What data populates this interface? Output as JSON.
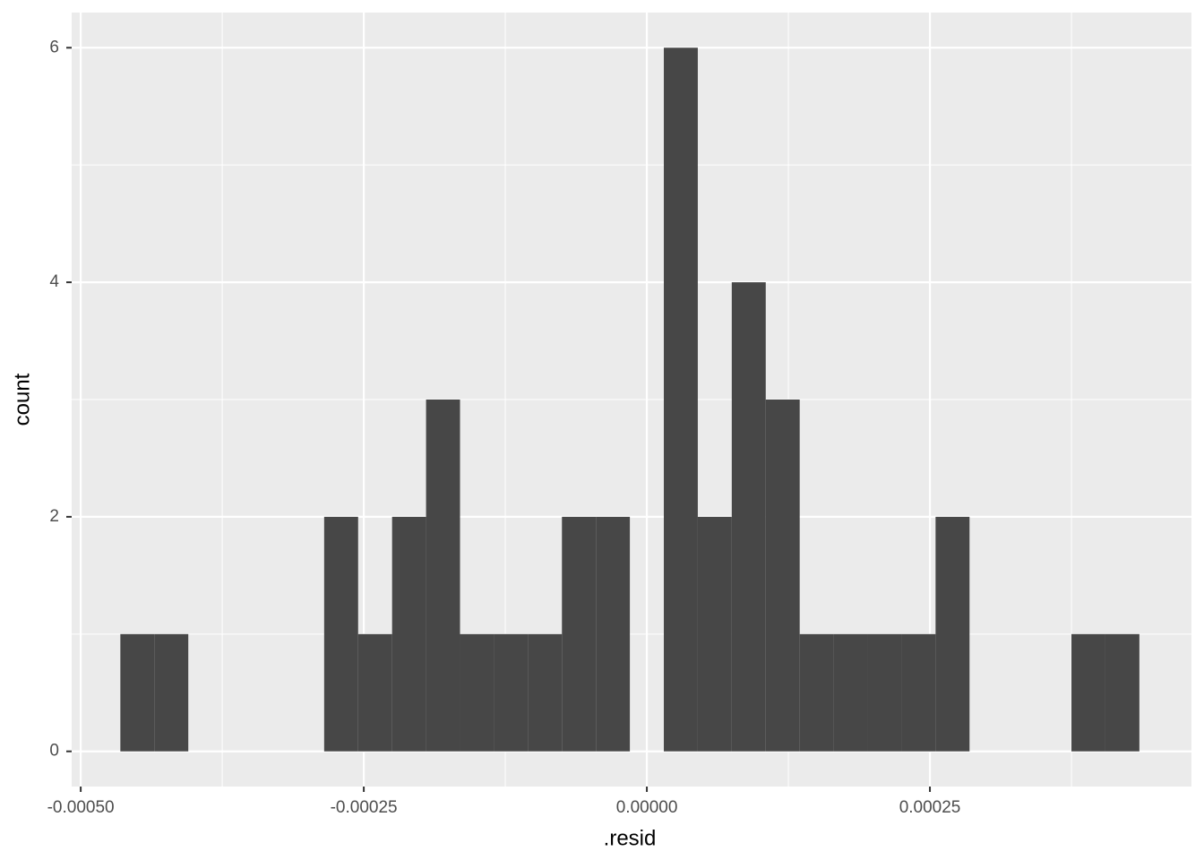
{
  "chart_data": {
    "type": "histogram",
    "x_label": ".resid",
    "y_label": "count",
    "bins": [
      -0.000465,
      -0.000435,
      -0.000405,
      -0.000375,
      -0.000345,
      -0.000315,
      -0.000285,
      -0.000255,
      -0.000225,
      -0.000195,
      -0.000165,
      -0.000135,
      -0.000105,
      -7.5e-05,
      -4.5e-05,
      -1.5e-05,
      1.5e-05,
      4.5e-05,
      7.5e-05,
      0.000105,
      0.000135,
      0.000165,
      0.000195,
      0.000225,
      0.000255,
      0.000285,
      0.000315,
      0.000345,
      0.000375,
      0.000405,
      0.000435
    ],
    "counts": [
      1,
      1,
      0,
      0,
      0,
      0,
      2,
      1,
      2,
      3,
      1,
      1,
      1,
      2,
      2,
      0,
      6,
      2,
      4,
      3,
      1,
      1,
      1,
      1,
      2,
      0,
      0,
      0,
      1,
      1
    ],
    "color": "#474747",
    "xlim": [
      -0.000508,
      0.000481
    ],
    "ylim": [
      -0.3,
      6.3
    ],
    "xticks": [
      {
        "value": -0.0005,
        "label": "-0.00050"
      },
      {
        "value": -0.00025,
        "label": "-0.00025"
      },
      {
        "value": 0,
        "label": "0.00000"
      },
      {
        "value": 0.00025,
        "label": "0.00025"
      }
    ],
    "yticks": [
      0,
      2,
      4,
      6
    ],
    "grid": true
  }
}
